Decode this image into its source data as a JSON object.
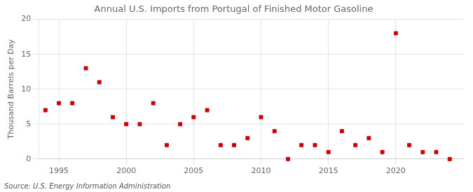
{
  "chart_data": {
    "type": "scatter",
    "title": "Annual U.S. Imports from Portugal of Finished Motor Gasoline",
    "ylabel": "Thousand Barrels per Day",
    "source": "Source: U.S. Energy Information Administration",
    "x": [
      1994,
      1995,
      1996,
      1997,
      1998,
      1999,
      2000,
      2001,
      2002,
      2003,
      2004,
      2005,
      2006,
      2007,
      2008,
      2009,
      2010,
      2011,
      2012,
      2013,
      2014,
      2015,
      2016,
      2017,
      2018,
      2019,
      2020,
      2021,
      2022,
      2023,
      2024
    ],
    "values": [
      7,
      8,
      8,
      13,
      11,
      6,
      5,
      5,
      8,
      2,
      5,
      6,
      7,
      2,
      2,
      3,
      6,
      4,
      0,
      2,
      2,
      1,
      4,
      2,
      3,
      1,
      18,
      2,
      1,
      1,
      0
    ],
    "color": "#cc0000",
    "marker": "square",
    "xlim": [
      1993.5,
      2025
    ],
    "xticks": [
      1995,
      2000,
      2005,
      2010,
      2015,
      2020
    ],
    "ylim": [
      0,
      20
    ],
    "yticks": [
      0,
      5,
      10,
      15,
      20
    ],
    "grid": true
  }
}
